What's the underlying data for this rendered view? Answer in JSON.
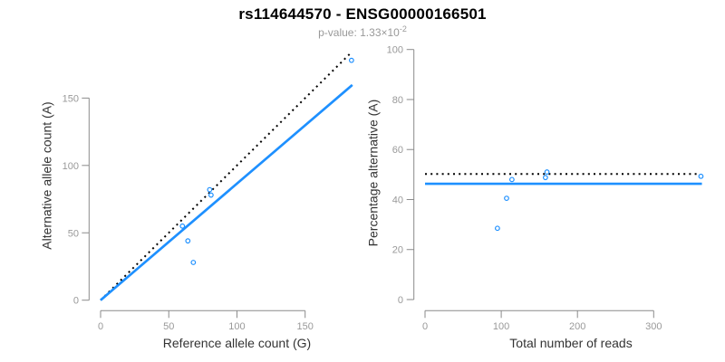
{
  "header": {
    "title": "rs114644570 - ENSG00000166501",
    "pvalue_prefix": "p-value: 1.33×10",
    "pvalue_exponent": "-2"
  },
  "colors": {
    "accent_blue": "#1E90FF",
    "dotted_black": "#000000",
    "axis_gray": "#8a8a8a",
    "tick_label_gray": "#999999",
    "axis_title_dark": "#333333",
    "subtitle_gray": "#999999",
    "title_black": "#000000"
  },
  "chart_data": [
    {
      "type": "scatter",
      "name": "allele-counts",
      "xlabel": "Reference allele count (G)",
      "ylabel": "Alternative allele count (A)",
      "xticks": [
        0,
        50,
        100,
        150
      ],
      "yticks": [
        0,
        50,
        100,
        150
      ],
      "xlim": [
        0,
        185
      ],
      "ylim": [
        0,
        185
      ],
      "grid": false,
      "points": [
        [
          60,
          55
        ],
        [
          64,
          44
        ],
        [
          68,
          28
        ],
        [
          80,
          82
        ],
        [
          81,
          78
        ],
        [
          184,
          178
        ]
      ],
      "lines": [
        {
          "name": "identity-line",
          "style": "dotted",
          "color": "#000000",
          "slope": 1,
          "intercept": 0,
          "from": [
            0,
            0
          ],
          "to": [
            183.5,
            183.5
          ]
        },
        {
          "name": "fit-line",
          "style": "solid",
          "color": "#1E90FF",
          "slope": 0.865,
          "intercept": 0,
          "from": [
            0,
            0
          ],
          "to": [
            184.6,
            159.7
          ]
        }
      ]
    },
    {
      "type": "scatter",
      "name": "percentage-alternative",
      "xlabel": "Total number of reads",
      "ylabel": "Percentage alternative (A)",
      "xticks": [
        0,
        100,
        200,
        300
      ],
      "yticks": [
        0,
        20,
        40,
        60,
        80,
        100
      ],
      "xlim": [
        0,
        365
      ],
      "ylim": [
        0,
        100
      ],
      "grid": false,
      "points": [
        [
          95,
          28.5
        ],
        [
          107,
          40.5
        ],
        [
          114,
          48
        ],
        [
          158,
          48.8
        ],
        [
          160,
          51
        ],
        [
          362,
          49.3
        ]
      ],
      "lines": [
        {
          "name": "expected-50pct-line",
          "style": "dotted",
          "color": "#000000",
          "slope": 0,
          "intercept": 50,
          "from": [
            0,
            50.2
          ],
          "to": [
            358,
            50.2
          ]
        },
        {
          "name": "mean-pct-line",
          "style": "solid",
          "color": "#1E90FF",
          "slope": 0,
          "intercept": 46.3,
          "from": [
            0,
            46.3
          ],
          "to": [
            363.3,
            46.3
          ]
        }
      ]
    }
  ]
}
